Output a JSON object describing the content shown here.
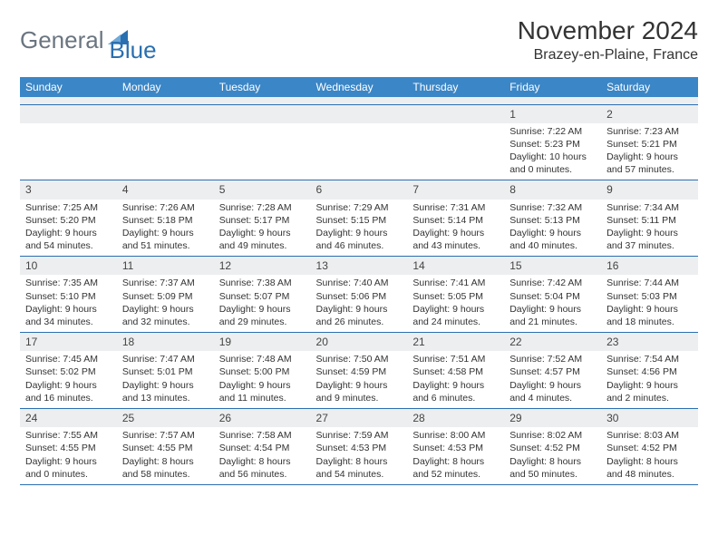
{
  "logo": {
    "text1": "General",
    "text2": "Blue"
  },
  "title": "November 2024",
  "location": "Brazey-en-Plaine, France",
  "dayHeaders": [
    "Sunday",
    "Monday",
    "Tuesday",
    "Wednesday",
    "Thursday",
    "Friday",
    "Saturday"
  ],
  "colors": {
    "headerBg": "#3b86c6",
    "border": "#2a6fb0",
    "dayNumBg": "#edeeef",
    "logoGray": "#6a7580",
    "logoBlue": "#2a6fb0"
  },
  "weeks": [
    [
      {
        "empty": true
      },
      {
        "empty": true
      },
      {
        "empty": true
      },
      {
        "empty": true
      },
      {
        "empty": true
      },
      {
        "num": "1",
        "sunrise": "Sunrise: 7:22 AM",
        "sunset": "Sunset: 5:23 PM",
        "daylight1": "Daylight: 10 hours",
        "daylight2": "and 0 minutes."
      },
      {
        "num": "2",
        "sunrise": "Sunrise: 7:23 AM",
        "sunset": "Sunset: 5:21 PM",
        "daylight1": "Daylight: 9 hours",
        "daylight2": "and 57 minutes."
      }
    ],
    [
      {
        "num": "3",
        "sunrise": "Sunrise: 7:25 AM",
        "sunset": "Sunset: 5:20 PM",
        "daylight1": "Daylight: 9 hours",
        "daylight2": "and 54 minutes."
      },
      {
        "num": "4",
        "sunrise": "Sunrise: 7:26 AM",
        "sunset": "Sunset: 5:18 PM",
        "daylight1": "Daylight: 9 hours",
        "daylight2": "and 51 minutes."
      },
      {
        "num": "5",
        "sunrise": "Sunrise: 7:28 AM",
        "sunset": "Sunset: 5:17 PM",
        "daylight1": "Daylight: 9 hours",
        "daylight2": "and 49 minutes."
      },
      {
        "num": "6",
        "sunrise": "Sunrise: 7:29 AM",
        "sunset": "Sunset: 5:15 PM",
        "daylight1": "Daylight: 9 hours",
        "daylight2": "and 46 minutes."
      },
      {
        "num": "7",
        "sunrise": "Sunrise: 7:31 AM",
        "sunset": "Sunset: 5:14 PM",
        "daylight1": "Daylight: 9 hours",
        "daylight2": "and 43 minutes."
      },
      {
        "num": "8",
        "sunrise": "Sunrise: 7:32 AM",
        "sunset": "Sunset: 5:13 PM",
        "daylight1": "Daylight: 9 hours",
        "daylight2": "and 40 minutes."
      },
      {
        "num": "9",
        "sunrise": "Sunrise: 7:34 AM",
        "sunset": "Sunset: 5:11 PM",
        "daylight1": "Daylight: 9 hours",
        "daylight2": "and 37 minutes."
      }
    ],
    [
      {
        "num": "10",
        "sunrise": "Sunrise: 7:35 AM",
        "sunset": "Sunset: 5:10 PM",
        "daylight1": "Daylight: 9 hours",
        "daylight2": "and 34 minutes."
      },
      {
        "num": "11",
        "sunrise": "Sunrise: 7:37 AM",
        "sunset": "Sunset: 5:09 PM",
        "daylight1": "Daylight: 9 hours",
        "daylight2": "and 32 minutes."
      },
      {
        "num": "12",
        "sunrise": "Sunrise: 7:38 AM",
        "sunset": "Sunset: 5:07 PM",
        "daylight1": "Daylight: 9 hours",
        "daylight2": "and 29 minutes."
      },
      {
        "num": "13",
        "sunrise": "Sunrise: 7:40 AM",
        "sunset": "Sunset: 5:06 PM",
        "daylight1": "Daylight: 9 hours",
        "daylight2": "and 26 minutes."
      },
      {
        "num": "14",
        "sunrise": "Sunrise: 7:41 AM",
        "sunset": "Sunset: 5:05 PM",
        "daylight1": "Daylight: 9 hours",
        "daylight2": "and 24 minutes."
      },
      {
        "num": "15",
        "sunrise": "Sunrise: 7:42 AM",
        "sunset": "Sunset: 5:04 PM",
        "daylight1": "Daylight: 9 hours",
        "daylight2": "and 21 minutes."
      },
      {
        "num": "16",
        "sunrise": "Sunrise: 7:44 AM",
        "sunset": "Sunset: 5:03 PM",
        "daylight1": "Daylight: 9 hours",
        "daylight2": "and 18 minutes."
      }
    ],
    [
      {
        "num": "17",
        "sunrise": "Sunrise: 7:45 AM",
        "sunset": "Sunset: 5:02 PM",
        "daylight1": "Daylight: 9 hours",
        "daylight2": "and 16 minutes."
      },
      {
        "num": "18",
        "sunrise": "Sunrise: 7:47 AM",
        "sunset": "Sunset: 5:01 PM",
        "daylight1": "Daylight: 9 hours",
        "daylight2": "and 13 minutes."
      },
      {
        "num": "19",
        "sunrise": "Sunrise: 7:48 AM",
        "sunset": "Sunset: 5:00 PM",
        "daylight1": "Daylight: 9 hours",
        "daylight2": "and 11 minutes."
      },
      {
        "num": "20",
        "sunrise": "Sunrise: 7:50 AM",
        "sunset": "Sunset: 4:59 PM",
        "daylight1": "Daylight: 9 hours",
        "daylight2": "and 9 minutes."
      },
      {
        "num": "21",
        "sunrise": "Sunrise: 7:51 AM",
        "sunset": "Sunset: 4:58 PM",
        "daylight1": "Daylight: 9 hours",
        "daylight2": "and 6 minutes."
      },
      {
        "num": "22",
        "sunrise": "Sunrise: 7:52 AM",
        "sunset": "Sunset: 4:57 PM",
        "daylight1": "Daylight: 9 hours",
        "daylight2": "and 4 minutes."
      },
      {
        "num": "23",
        "sunrise": "Sunrise: 7:54 AM",
        "sunset": "Sunset: 4:56 PM",
        "daylight1": "Daylight: 9 hours",
        "daylight2": "and 2 minutes."
      }
    ],
    [
      {
        "num": "24",
        "sunrise": "Sunrise: 7:55 AM",
        "sunset": "Sunset: 4:55 PM",
        "daylight1": "Daylight: 9 hours",
        "daylight2": "and 0 minutes."
      },
      {
        "num": "25",
        "sunrise": "Sunrise: 7:57 AM",
        "sunset": "Sunset: 4:55 PM",
        "daylight1": "Daylight: 8 hours",
        "daylight2": "and 58 minutes."
      },
      {
        "num": "26",
        "sunrise": "Sunrise: 7:58 AM",
        "sunset": "Sunset: 4:54 PM",
        "daylight1": "Daylight: 8 hours",
        "daylight2": "and 56 minutes."
      },
      {
        "num": "27",
        "sunrise": "Sunrise: 7:59 AM",
        "sunset": "Sunset: 4:53 PM",
        "daylight1": "Daylight: 8 hours",
        "daylight2": "and 54 minutes."
      },
      {
        "num": "28",
        "sunrise": "Sunrise: 8:00 AM",
        "sunset": "Sunset: 4:53 PM",
        "daylight1": "Daylight: 8 hours",
        "daylight2": "and 52 minutes."
      },
      {
        "num": "29",
        "sunrise": "Sunrise: 8:02 AM",
        "sunset": "Sunset: 4:52 PM",
        "daylight1": "Daylight: 8 hours",
        "daylight2": "and 50 minutes."
      },
      {
        "num": "30",
        "sunrise": "Sunrise: 8:03 AM",
        "sunset": "Sunset: 4:52 PM",
        "daylight1": "Daylight: 8 hours",
        "daylight2": "and 48 minutes."
      }
    ]
  ]
}
